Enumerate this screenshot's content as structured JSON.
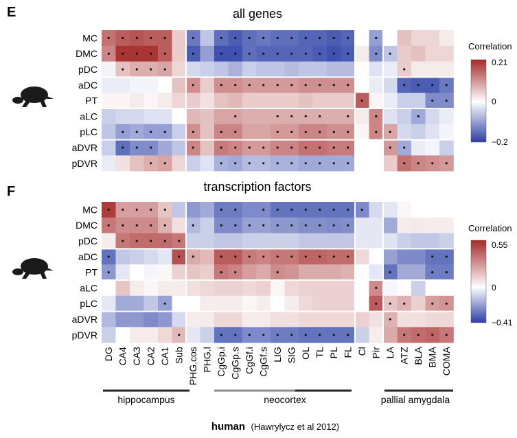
{
  "figure": {
    "columns": [
      "DG",
      "CA4",
      "CA3",
      "CA2",
      "CA1",
      "Sub",
      "PHG.cos",
      "PHG.l",
      "CgGp.i",
      "CgGp.s",
      "CgGf.i",
      "CgGf.s",
      "LIG",
      "SIG",
      "OL",
      "TL",
      "PL",
      "FL",
      "Cl",
      "Pir",
      "LA",
      "ATZ",
      "BLA",
      "BMA",
      "COMA"
    ],
    "rows": [
      "MC",
      "DMC",
      "pDC",
      "aDC",
      "PT",
      "aLC",
      "pLC",
      "aDVR",
      "pDVR"
    ],
    "groups": [
      {
        "label": "hippocampus"
      },
      {
        "label": "neocortex"
      },
      {
        "label": "pallial amygdala"
      }
    ],
    "footer": {
      "species": "human",
      "citation": "(Hawrylycz et al 2012)"
    },
    "colors": {
      "pos": "#a52a2a",
      "neg": "#2b3fa6",
      "mid": "#ffffff",
      "grid": "#ffffff",
      "dot": "#111111"
    }
  },
  "chart_data": [
    {
      "type": "heatmap",
      "panel": "E",
      "title": "all genes",
      "legend_title": "Correlation",
      "vmin": -0.2,
      "vmax": 0.21,
      "tick_labels": [
        "0.21",
        "0",
        "−0.2"
      ],
      "values": [
        [
          0.14,
          0.16,
          0.17,
          0.16,
          0.16,
          0.05,
          -0.14,
          -0.06,
          -0.15,
          -0.17,
          -0.15,
          -0.14,
          -0.15,
          -0.15,
          -0.16,
          -0.16,
          -0.17,
          -0.16,
          0.0,
          -0.1,
          0.0,
          0.06,
          0.04,
          0.04,
          0.02
        ],
        [
          0.12,
          0.2,
          0.2,
          0.2,
          0.16,
          0.05,
          -0.17,
          -0.1,
          -0.18,
          -0.18,
          -0.15,
          -0.16,
          -0.16,
          -0.16,
          -0.16,
          -0.17,
          -0.18,
          -0.17,
          0.02,
          -0.12,
          -0.06,
          0.05,
          0.06,
          0.04,
          0.04
        ],
        [
          -0.01,
          0.06,
          0.08,
          0.08,
          0.09,
          0.04,
          -0.04,
          -0.05,
          -0.06,
          -0.08,
          -0.05,
          -0.06,
          -0.06,
          -0.07,
          -0.06,
          -0.06,
          -0.07,
          -0.07,
          0.0,
          -0.03,
          -0.02,
          0.05,
          0.02,
          0.02,
          0.02
        ],
        [
          -0.02,
          -0.02,
          -0.01,
          -0.01,
          0.0,
          0.06,
          0.11,
          0.05,
          0.11,
          0.11,
          0.1,
          0.1,
          0.1,
          0.1,
          0.11,
          0.11,
          0.11,
          0.11,
          0.0,
          -0.02,
          -0.04,
          -0.16,
          -0.17,
          -0.17,
          -0.14
        ],
        [
          0.01,
          0.01,
          0.02,
          0.01,
          0.02,
          0.04,
          0.05,
          0.03,
          0.06,
          0.07,
          0.05,
          0.05,
          0.05,
          0.05,
          0.06,
          0.05,
          0.05,
          0.05,
          0.16,
          0.01,
          -0.02,
          -0.05,
          -0.05,
          -0.12,
          -0.12
        ],
        [
          -0.05,
          -0.04,
          -0.04,
          -0.03,
          -0.03,
          0.0,
          0.07,
          0.06,
          0.09,
          0.09,
          0.08,
          0.08,
          0.08,
          0.08,
          0.08,
          0.08,
          0.08,
          0.08,
          0.02,
          0.12,
          -0.03,
          -0.05,
          -0.09,
          -0.04,
          -0.02
        ],
        [
          -0.06,
          -0.1,
          -0.09,
          -0.1,
          -0.1,
          -0.05,
          0.11,
          0.06,
          0.12,
          0.12,
          0.09,
          0.09,
          0.1,
          0.1,
          0.12,
          0.12,
          0.11,
          0.11,
          0.01,
          0.12,
          0.09,
          -0.04,
          -0.05,
          -0.03,
          -0.01
        ],
        [
          -0.05,
          -0.15,
          -0.12,
          -0.12,
          -0.09,
          -0.06,
          0.12,
          0.06,
          0.13,
          0.12,
          0.1,
          0.1,
          0.12,
          0.12,
          0.14,
          0.14,
          0.13,
          0.13,
          0.0,
          0.0,
          0.1,
          -0.09,
          -0.02,
          -0.01,
          -0.05
        ],
        [
          -0.02,
          0.03,
          0.06,
          0.08,
          0.09,
          0.04,
          -0.05,
          -0.03,
          -0.08,
          -0.09,
          -0.07,
          -0.07,
          -0.08,
          -0.08,
          -0.09,
          -0.09,
          -0.09,
          -0.09,
          0.0,
          0.0,
          0.05,
          0.14,
          0.12,
          0.11,
          0.1
        ]
      ],
      "marked": [
        [
          1,
          1,
          1,
          1,
          1,
          0,
          1,
          0,
          1,
          1,
          1,
          1,
          1,
          1,
          1,
          1,
          1,
          1,
          0,
          1,
          0,
          0,
          0,
          0,
          0
        ],
        [
          1,
          1,
          1,
          1,
          1,
          0,
          1,
          0,
          1,
          1,
          1,
          1,
          1,
          1,
          1,
          1,
          1,
          1,
          0,
          1,
          1,
          0,
          0,
          0,
          0
        ],
        [
          0,
          1,
          1,
          1,
          1,
          0,
          0,
          0,
          0,
          0,
          0,
          0,
          0,
          0,
          0,
          0,
          0,
          0,
          0,
          0,
          0,
          1,
          0,
          0,
          0
        ],
        [
          0,
          0,
          0,
          0,
          0,
          0,
          1,
          0,
          1,
          1,
          1,
          1,
          1,
          1,
          1,
          1,
          1,
          1,
          0,
          0,
          0,
          1,
          1,
          1,
          1
        ],
        [
          0,
          0,
          0,
          0,
          0,
          0,
          0,
          0,
          0,
          0,
          0,
          0,
          0,
          0,
          0,
          0,
          0,
          0,
          1,
          0,
          0,
          0,
          0,
          1,
          1
        ],
        [
          0,
          0,
          0,
          0,
          0,
          0,
          0,
          0,
          0,
          1,
          0,
          0,
          1,
          1,
          1,
          1,
          0,
          1,
          0,
          1,
          0,
          0,
          1,
          0,
          0
        ],
        [
          0,
          1,
          1,
          1,
          1,
          0,
          1,
          0,
          1,
          1,
          0,
          0,
          1,
          1,
          1,
          1,
          1,
          1,
          0,
          1,
          1,
          0,
          0,
          0,
          0
        ],
        [
          0,
          1,
          1,
          1,
          0,
          0,
          1,
          0,
          1,
          1,
          1,
          1,
          1,
          1,
          1,
          1,
          1,
          1,
          0,
          0,
          1,
          1,
          0,
          0,
          0
        ],
        [
          0,
          0,
          0,
          1,
          1,
          0,
          0,
          0,
          1,
          1,
          1,
          1,
          1,
          1,
          1,
          1,
          1,
          1,
          0,
          0,
          0,
          1,
          1,
          1,
          1
        ]
      ]
    },
    {
      "type": "heatmap",
      "panel": "F",
      "title": "transcription factors",
      "legend_title": "Correlation",
      "vmin": -0.41,
      "vmax": 0.55,
      "tick_labels": [
        "0.55",
        "0",
        "−0.41"
      ],
      "values": [
        [
          0.5,
          0.25,
          0.25,
          0.25,
          0.15,
          -0.12,
          -0.22,
          -0.18,
          -0.28,
          -0.28,
          -0.25,
          -0.25,
          -0.3,
          -0.3,
          -0.3,
          -0.3,
          -0.3,
          -0.3,
          -0.25,
          -0.08,
          -0.05,
          0.02,
          0.0,
          0.0,
          0.0
        ],
        [
          0.35,
          0.3,
          0.3,
          0.3,
          0.2,
          0.08,
          -0.15,
          -0.1,
          -0.25,
          -0.25,
          -0.2,
          -0.2,
          -0.22,
          -0.22,
          -0.24,
          -0.24,
          -0.25,
          -0.24,
          -0.05,
          -0.05,
          -0.18,
          0.05,
          0.06,
          0.05,
          0.05
        ],
        [
          0.05,
          0.35,
          0.38,
          0.38,
          0.38,
          0.35,
          -0.1,
          -0.1,
          -0.12,
          -0.12,
          -0.1,
          -0.1,
          -0.1,
          -0.1,
          -0.12,
          -0.12,
          -0.12,
          -0.12,
          -0.05,
          -0.05,
          -0.06,
          -0.1,
          -0.12,
          -0.12,
          -0.1
        ],
        [
          -0.3,
          -0.12,
          -0.1,
          -0.08,
          -0.05,
          0.45,
          0.22,
          0.18,
          0.42,
          0.42,
          0.34,
          0.32,
          0.35,
          0.35,
          0.4,
          0.4,
          0.38,
          0.38,
          0.1,
          0.0,
          -0.2,
          -0.25,
          -0.25,
          -0.3,
          -0.3
        ],
        [
          -0.22,
          -0.05,
          0.0,
          -0.02,
          0.02,
          0.12,
          0.15,
          0.13,
          0.35,
          0.32,
          0.25,
          0.22,
          0.3,
          0.28,
          0.22,
          0.22,
          0.22,
          0.2,
          0.0,
          -0.05,
          -0.3,
          -0.18,
          -0.18,
          -0.28,
          -0.28
        ],
        [
          0.0,
          0.15,
          0.05,
          0.02,
          0.05,
          0.05,
          0.08,
          0.1,
          0.12,
          0.12,
          0.1,
          0.12,
          0.02,
          0.1,
          0.12,
          0.12,
          0.12,
          0.12,
          0.0,
          0.3,
          -0.02,
          0.0,
          -0.1,
          0.0,
          0.0
        ],
        [
          -0.05,
          -0.18,
          -0.18,
          -0.12,
          -0.2,
          0.0,
          0.0,
          0.05,
          0.05,
          0.05,
          0.02,
          0.05,
          0.0,
          0.05,
          0.1,
          0.12,
          0.12,
          0.12,
          0.0,
          0.42,
          0.15,
          0.2,
          0.12,
          0.25,
          0.28
        ],
        [
          -0.15,
          -0.22,
          -0.22,
          -0.25,
          -0.22,
          -0.08,
          0.05,
          0.05,
          0.1,
          0.1,
          0.05,
          0.05,
          0.08,
          0.08,
          0.1,
          0.1,
          0.1,
          0.1,
          0.12,
          0.08,
          0.2,
          0.08,
          0.08,
          0.1,
          0.1
        ],
        [
          -0.1,
          0.0,
          0.05,
          0.05,
          0.1,
          0.18,
          -0.05,
          -0.1,
          -0.3,
          -0.3,
          -0.25,
          -0.25,
          -0.28,
          -0.28,
          -0.3,
          -0.3,
          -0.3,
          -0.3,
          -0.1,
          0.05,
          0.22,
          0.35,
          0.38,
          0.4,
          0.35
        ]
      ],
      "marked": [
        [
          1,
          1,
          1,
          1,
          1,
          0,
          0,
          0,
          1,
          1,
          0,
          1,
          1,
          1,
          1,
          1,
          1,
          1,
          1,
          0,
          0,
          0,
          0,
          0,
          0
        ],
        [
          1,
          1,
          1,
          1,
          1,
          0,
          1,
          0,
          1,
          1,
          1,
          1,
          1,
          1,
          1,
          1,
          1,
          1,
          0,
          0,
          0,
          0,
          0,
          0,
          0
        ],
        [
          0,
          1,
          1,
          1,
          1,
          1,
          0,
          0,
          0,
          0,
          0,
          0,
          0,
          0,
          0,
          0,
          0,
          0,
          0,
          0,
          0,
          0,
          0,
          0,
          0
        ],
        [
          1,
          0,
          0,
          0,
          0,
          1,
          1,
          0,
          1,
          1,
          1,
          1,
          1,
          1,
          1,
          1,
          1,
          1,
          0,
          0,
          0,
          0,
          0,
          1,
          1
        ],
        [
          1,
          0,
          0,
          0,
          0,
          0,
          0,
          0,
          1,
          1,
          0,
          0,
          1,
          0,
          0,
          0,
          0,
          0,
          0,
          0,
          1,
          0,
          0,
          1,
          1
        ],
        [
          0,
          0,
          0,
          0,
          0,
          0,
          0,
          0,
          0,
          0,
          0,
          0,
          0,
          0,
          0,
          0,
          0,
          0,
          0,
          1,
          0,
          0,
          0,
          0,
          0
        ],
        [
          0,
          0,
          0,
          0,
          1,
          0,
          0,
          0,
          0,
          0,
          0,
          0,
          0,
          0,
          0,
          0,
          0,
          0,
          0,
          1,
          1,
          1,
          0,
          1,
          1
        ],
        [
          0,
          0,
          0,
          0,
          0,
          0,
          0,
          0,
          0,
          0,
          0,
          0,
          0,
          0,
          0,
          0,
          0,
          0,
          0,
          0,
          1,
          0,
          0,
          0,
          0
        ],
        [
          0,
          0,
          0,
          0,
          0,
          1,
          0,
          0,
          1,
          1,
          1,
          1,
          1,
          1,
          1,
          1,
          1,
          1,
          0,
          0,
          0,
          1,
          1,
          1,
          1
        ]
      ]
    }
  ]
}
